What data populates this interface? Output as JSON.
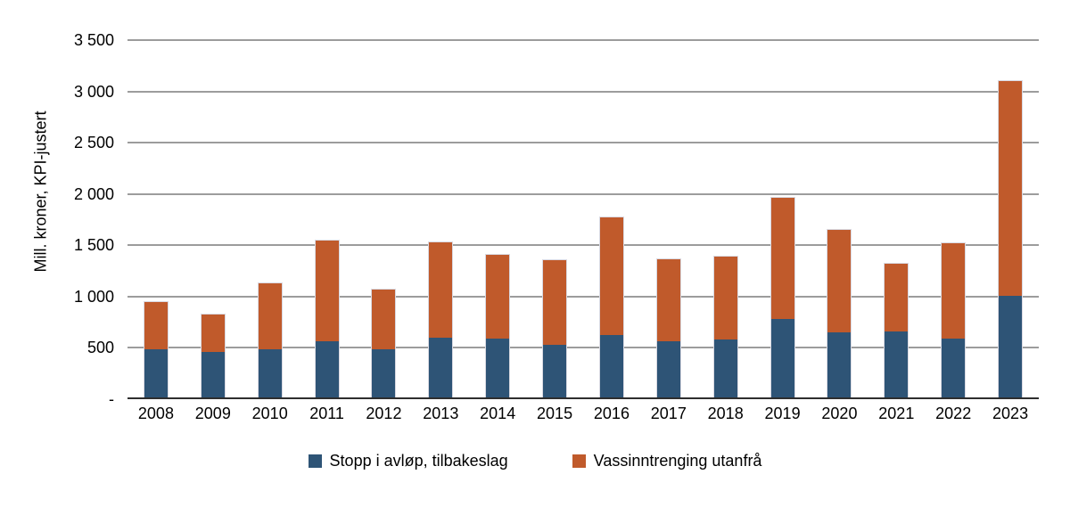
{
  "chart_data": {
    "type": "bar",
    "stacked": true,
    "title": "",
    "xlabel": "",
    "ylabel": "Mill. kroner, KPI-justert",
    "ylim": [
      0,
      3500
    ],
    "grid": true,
    "legend_position": "bottom",
    "categories": [
      "2008",
      "2009",
      "2010",
      "2011",
      "2012",
      "2013",
      "2014",
      "2015",
      "2016",
      "2017",
      "2018",
      "2019",
      "2020",
      "2021",
      "2022",
      "2023"
    ],
    "series": [
      {
        "name": "Stopp i avløp, tilbakeslag",
        "color": "#2E5476",
        "values": [
          475,
          455,
          480,
          560,
          480,
          590,
          585,
          520,
          620,
          555,
          575,
          770,
          645,
          655,
          585,
          1000
        ]
      },
      {
        "name": "Vassinntrenging utanfrå",
        "color": "#C05A2B",
        "values": [
          465,
          365,
          640,
          980,
          580,
          930,
          815,
          825,
          1145,
          800,
          810,
          1180,
          1000,
          660,
          930,
          2090
        ]
      }
    ],
    "yticks": [
      {
        "value": 3500,
        "label": "3 500"
      },
      {
        "value": 3000,
        "label": "3 000"
      },
      {
        "value": 2500,
        "label": "2 500"
      },
      {
        "value": 2000,
        "label": "2 000"
      },
      {
        "value": 1500,
        "label": "1 500"
      },
      {
        "value": 1000,
        "label": "1 000"
      },
      {
        "value": 500,
        "label": "500"
      },
      {
        "value": 0,
        "label": "-"
      }
    ]
  },
  "colors": {
    "gridline": "#9C9C9C",
    "axis": "#2E2E2E",
    "text": "#000000",
    "bar_border": "#D9D9E2",
    "background": "#FFFFFF"
  }
}
